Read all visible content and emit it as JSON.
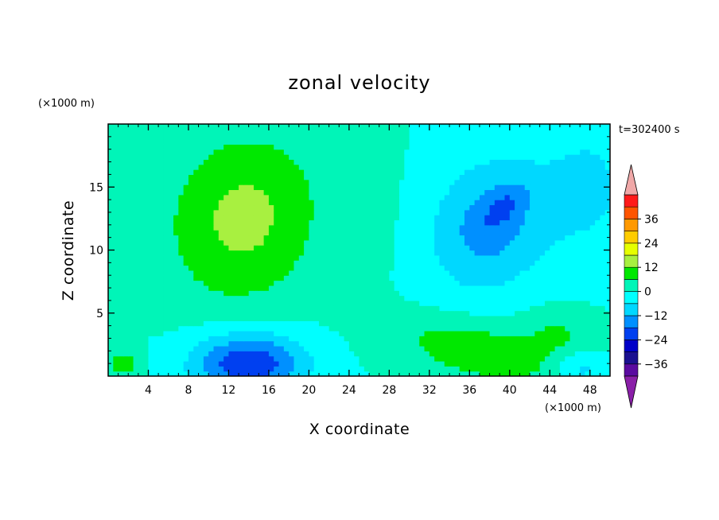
{
  "chart_data": {
    "type": "heatmap",
    "title": "zonal velocity",
    "xlabel": "X coordinate",
    "ylabel": "Z coordinate",
    "x_unit": "(×1000 m)",
    "y_unit": "(×1000 m)",
    "time_label": "t=302400 s",
    "xlim": [
      0,
      50
    ],
    "ylim": [
      0,
      20
    ],
    "x_ticks": [
      "4",
      "8",
      "12",
      "16",
      "20",
      "24",
      "28",
      "32",
      "36",
      "40",
      "44",
      "48"
    ],
    "y_ticks": [
      "5",
      "10",
      "15"
    ],
    "colorbar": {
      "levels": [
        -42,
        -36,
        -30,
        -24,
        -18,
        -12,
        -6,
        0,
        6,
        12,
        18,
        24,
        30,
        36,
        42
      ],
      "tick_labels": [
        "36",
        "24",
        "12",
        "0",
        "-12",
        "-24",
        "-36"
      ],
      "colors": [
        "#5a0aa0",
        "#1a1090",
        "#0000c8",
        "#0040f0",
        "#0090ff",
        "#00d8ff",
        "#00ffff",
        "#00f5b8",
        "#00e800",
        "#a8f040",
        "#e6ff00",
        "#ffcc00",
        "#ff9900",
        "#ff5500",
        "#ff1a1a"
      ],
      "under_color": "#8a1fa8",
      "over_color": "#f0a8a8"
    },
    "blobs": [
      {
        "x": 13.5,
        "z": 12.5,
        "sx": 7.5,
        "sz": 6.5,
        "amp": 14,
        "rot": 0.35
      },
      {
        "x": 38,
        "z": 12,
        "sx": 6,
        "sz": 5,
        "amp": -15,
        "rot": 0.5
      },
      {
        "x": 39.5,
        "z": 13.5,
        "sx": 2.5,
        "sz": 1.2,
        "amp": -7,
        "rot": 0.6
      },
      {
        "x": 14,
        "z": 1,
        "sx": 5.5,
        "sz": 2.5,
        "amp": -24,
        "rot": 0
      },
      {
        "x": 37,
        "z": 2,
        "sx": 8,
        "sz": 2.3,
        "amp": 11,
        "rot": -0.15
      },
      {
        "x": 45,
        "z": 3.5,
        "sx": 3.5,
        "sz": 2,
        "amp": 6,
        "rot": 0
      },
      {
        "x": 47,
        "z": 0.5,
        "sx": 2.5,
        "sz": 1.5,
        "amp": -9,
        "rot": 0
      },
      {
        "x": 1.5,
        "z": 1,
        "sx": 1.5,
        "sz": 1.2,
        "amp": 9,
        "rot": 0
      },
      {
        "x": 48,
        "z": 15,
        "sx": 5,
        "sz": 6,
        "amp": -7,
        "rot": 0
      },
      {
        "x": 26,
        "z": 14,
        "sx": 2.5,
        "sz": 6,
        "amp": 3,
        "rot": 0
      }
    ]
  }
}
